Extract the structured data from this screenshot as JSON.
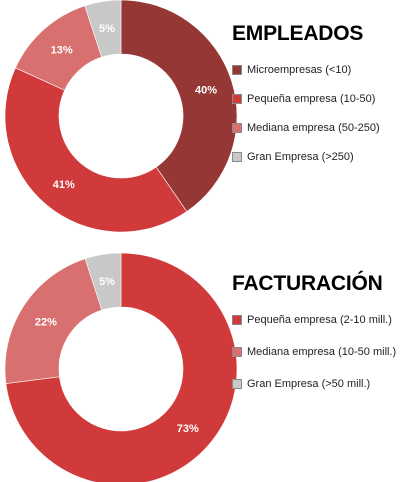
{
  "chart_data": [
    {
      "type": "pie",
      "title": "EMPLEADOS",
      "categories": [
        "Microempresas (<10)",
        "Pequeña empresa (10-50)",
        "Mediana empresa (50-250)",
        "Gran Empresa  (>250)"
      ],
      "values": [
        40,
        41,
        13,
        5
      ],
      "data_labels": [
        "40%",
        "41%",
        "13%",
        "5%"
      ],
      "colors": [
        "#953735",
        "#d13a3a",
        "#d97070",
        "#c8c8c8"
      ],
      "style": "donut",
      "legend_position": "right"
    },
    {
      "type": "pie",
      "title": "FACTURACIÓN",
      "categories": [
        "Pequeña empresa (2-10 mill.)",
        "Mediana empresa (10-50 mill.)",
        "Gran Empresa  (>50 mill.)"
      ],
      "values": [
        73,
        22,
        5
      ],
      "data_labels": [
        "73%",
        "22%",
        "5%"
      ],
      "colors": [
        "#d13a3a",
        "#d97070",
        "#c8c8c8"
      ],
      "style": "donut",
      "legend_position": "right"
    }
  ]
}
